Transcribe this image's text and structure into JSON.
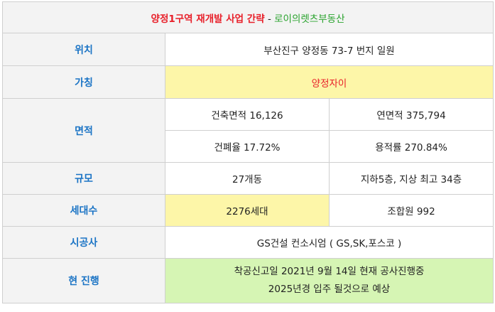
{
  "title": {
    "project": "양정1구역 재개발 사업 간략",
    "separator": " - ",
    "source": "로이의렛츠부동산"
  },
  "rows": {
    "location": {
      "label": "위치",
      "value": "부산진구 양정동 73-7 번지 일원"
    },
    "name": {
      "label": "가칭",
      "value": "양정자이"
    },
    "area": {
      "label": "면적",
      "building_area": "건축면적 16,126",
      "total_floor_area": "연면적 375,794",
      "coverage_ratio": "건폐율 17.72%",
      "floor_area_ratio": "용적률 270.84%"
    },
    "scale": {
      "label": "규모",
      "buildings": "27개동",
      "floors": "지하5층, 지상 최고 34층"
    },
    "households": {
      "label": "세대수",
      "total": "2276세대",
      "members": "조합원 992"
    },
    "contractor": {
      "label": "시공사",
      "value": "GS건설 컨소시엄 ( GS,SK,포스코 )"
    },
    "progress": {
      "label": "현 진행",
      "line1": "착공신고일 2021년 9월 14일 현재 공사진행중",
      "line2": "2025년경 입주 될것으로 예상"
    }
  },
  "colors": {
    "label_text": "#1b74c5",
    "title_red": "#e8202a",
    "title_green": "#27a22b",
    "highlight_yellow": "#fdf6a8",
    "highlight_green": "#d6f5b4",
    "label_bg": "#f3f3f3"
  }
}
